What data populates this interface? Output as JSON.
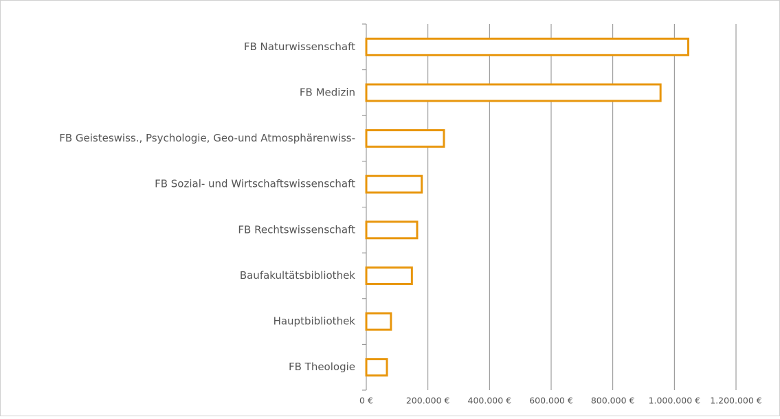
{
  "chart_data": {
    "type": "barh",
    "categories": [
      "FB Naturwissenschaft",
      "FB Medizin",
      "FB Geisteswiss., Psychologie, Geo-und Atmosphärenwiss-",
      "FB Sozial- und Wirtschaftswissenschaft",
      "FB Rechtswissenschaft",
      "Baufakultätsbibliothek",
      "Hauptbibliothek",
      "FB Theologie"
    ],
    "values": [
      1045000,
      955000,
      252000,
      180000,
      165000,
      148000,
      80000,
      67000
    ],
    "color": "#e8960c",
    "xlim": [
      0,
      1200000
    ],
    "xticks": [
      {
        "value": 0,
        "label": "0 €"
      },
      {
        "value": 200000,
        "label": "200.000 €"
      },
      {
        "value": 400000,
        "label": "400.000 €"
      },
      {
        "value": 600000,
        "label": "600.000 €"
      },
      {
        "value": 800000,
        "label": "800.000 €"
      },
      {
        "value": 1000000,
        "label": "1.000.000 €"
      },
      {
        "value": 1200000,
        "label": "1.200.000 €"
      }
    ],
    "grid": true
  }
}
